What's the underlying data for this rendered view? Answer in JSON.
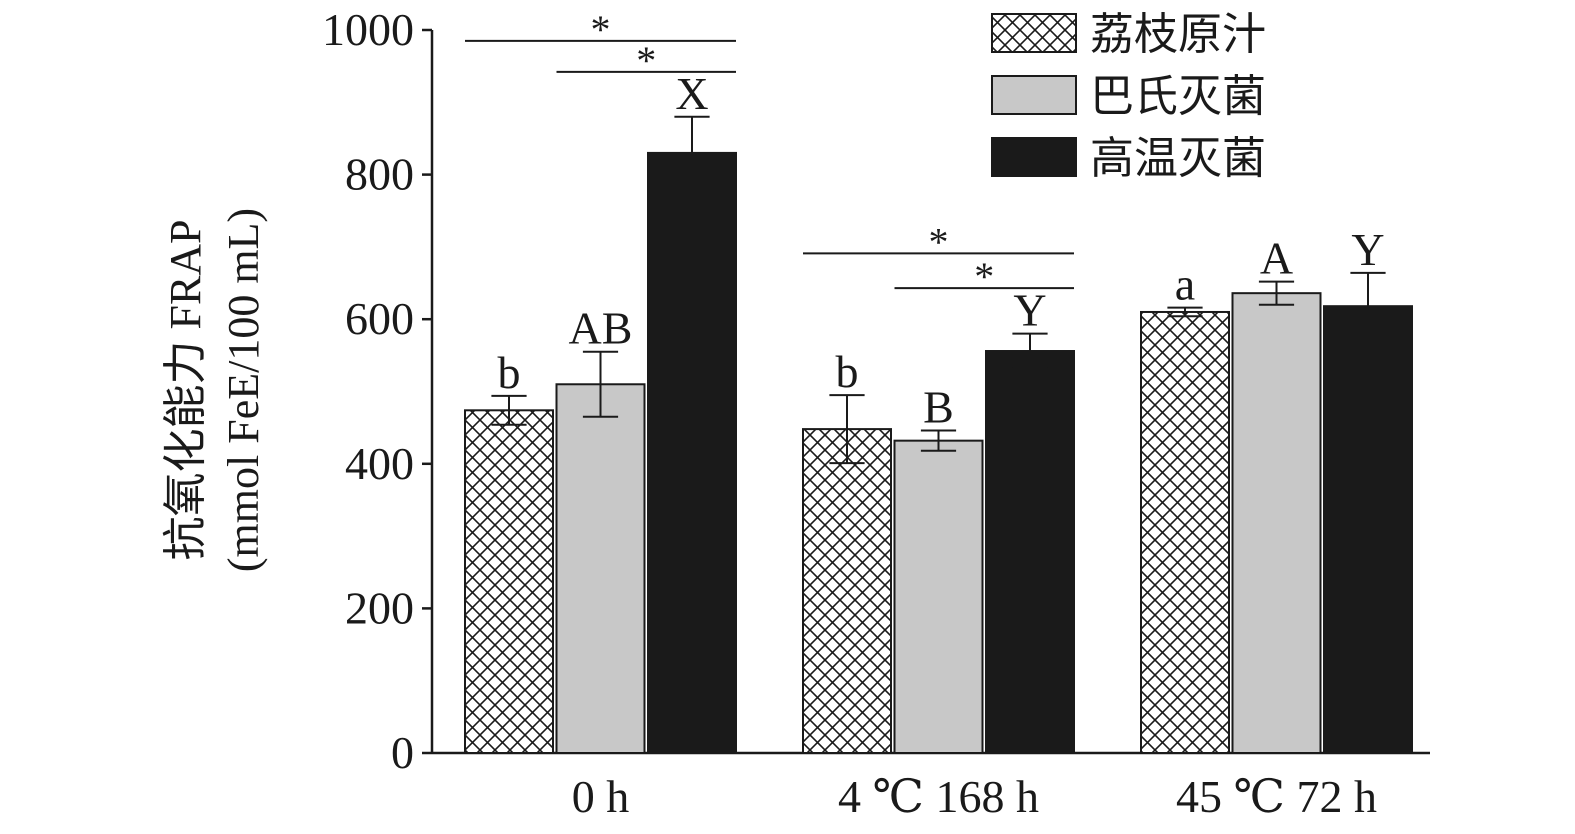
{
  "chart_data": {
    "type": "bar",
    "categories": [
      "0 h",
      "4 ℃ 168 h",
      "45 ℃ 72 h"
    ],
    "ylabel_line1": "抗氧化能力 FRAP",
    "ylabel_line2": "(mmol FeE/100 mL)",
    "ylim": [
      0,
      1000
    ],
    "yticks": [
      "0",
      "200",
      "400",
      "600",
      "800",
      "1000"
    ],
    "ytick_values": [
      0,
      200,
      400,
      600,
      800,
      1000
    ],
    "grid": false,
    "legend_position": "top-right",
    "series": [
      {
        "name": "荔枝原汁",
        "pattern": "crosshatch",
        "fill": "#ffffff",
        "values": [
          474,
          448,
          610
        ],
        "errors": [
          20,
          47,
          6
        ],
        "letters": [
          "b",
          "b",
          "a"
        ]
      },
      {
        "name": "巴氏灭菌",
        "pattern": "solid",
        "fill": "#c8c8c8",
        "values": [
          510,
          432,
          636
        ],
        "errors": [
          45,
          14,
          16
        ],
        "letters": [
          "AB",
          "B",
          "A"
        ]
      },
      {
        "name": "高温灭菌",
        "pattern": "solid",
        "fill": "#1a1a1a",
        "values": [
          830,
          556,
          618
        ],
        "errors": [
          50,
          24,
          46
        ],
        "letters": [
          "X",
          "Y",
          "Y"
        ]
      }
    ],
    "significance": [
      {
        "label": "*",
        "category": 0,
        "from_series": 0,
        "to_series": 2,
        "y": 985
      },
      {
        "label": "*",
        "category": 0,
        "from_series": 1,
        "to_series": 2,
        "y": 942
      },
      {
        "label": "*",
        "category": 1,
        "from_series": 0,
        "to_series": 2,
        "y": 691
      },
      {
        "label": "*",
        "category": 1,
        "from_series": 1,
        "to_series": 2,
        "y": 643
      }
    ]
  }
}
